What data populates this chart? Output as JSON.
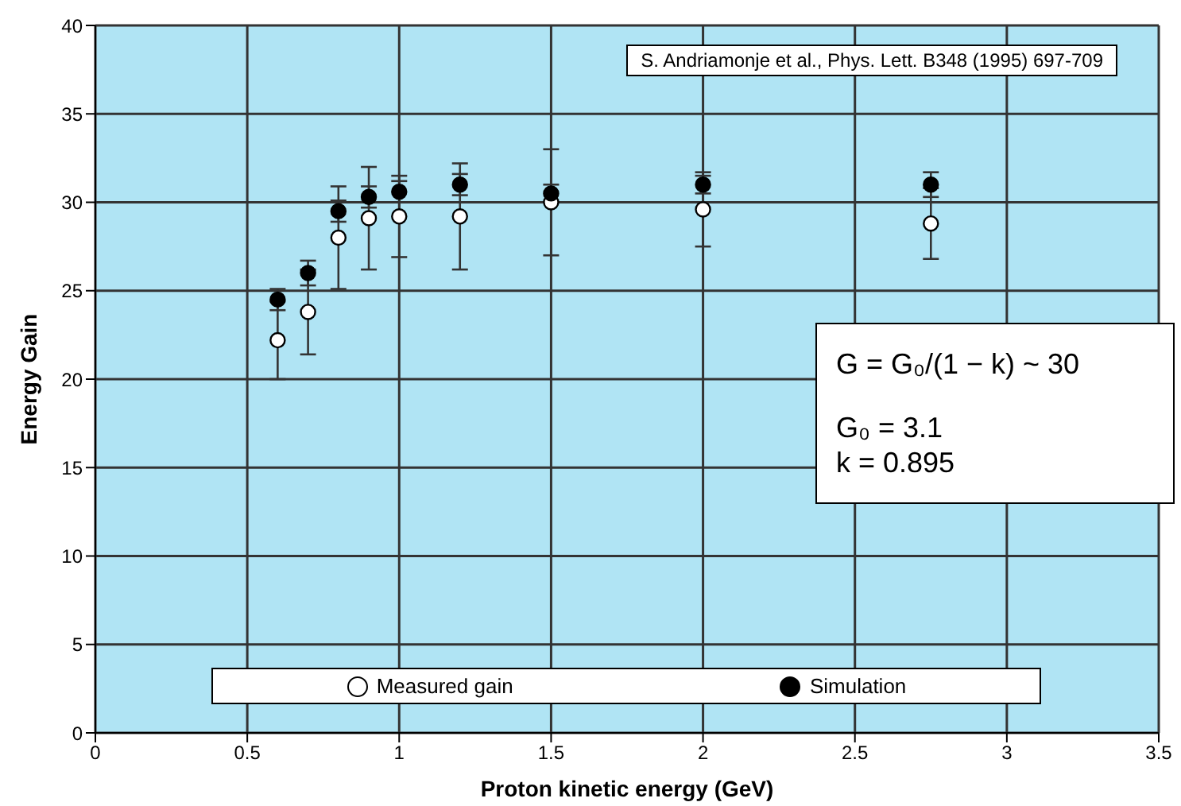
{
  "chart_data": {
    "type": "scatter",
    "xlabel": "Proton kinetic energy (GeV)",
    "ylabel": "Energy Gain",
    "x": [
      0.6,
      0.7,
      0.8,
      0.9,
      1.0,
      1.2,
      1.5,
      2.0,
      2.75
    ],
    "series": [
      {
        "name": "Measured gain",
        "color": "#ffffff",
        "values": [
          22.2,
          23.8,
          28.0,
          29.1,
          29.2,
          29.2,
          30.0,
          29.6,
          28.8
        ],
        "errors": [
          2.2,
          2.4,
          2.9,
          2.9,
          2.3,
          3.0,
          3.0,
          2.1,
          2.0
        ]
      },
      {
        "name": "Simulation",
        "color": "#000000",
        "values": [
          24.5,
          26.0,
          29.5,
          30.3,
          30.6,
          31.0,
          30.5,
          31.0,
          31.0
        ],
        "errors": [
          0.6,
          0.7,
          0.6,
          0.6,
          0.6,
          0.6,
          0.5,
          0.5,
          0.7
        ]
      }
    ],
    "xlim": [
      0,
      3.5
    ],
    "xticks": [
      0,
      0.5,
      1,
      1.5,
      2,
      2.5,
      3,
      3.5
    ],
    "ylim": [
      0,
      40
    ],
    "yticks": [
      0,
      5,
      10,
      15,
      20,
      25,
      30,
      35,
      40
    ],
    "grid": true,
    "legend": "bottom",
    "marker": "circle",
    "annotations": [
      "S. Andriamonje et al., Phys. Lett. B348 (1995) 697-709",
      "G = G₀/(1 − k) ~ 30",
      "G₀ =  3.1",
      "k = 0.895"
    ]
  }
}
